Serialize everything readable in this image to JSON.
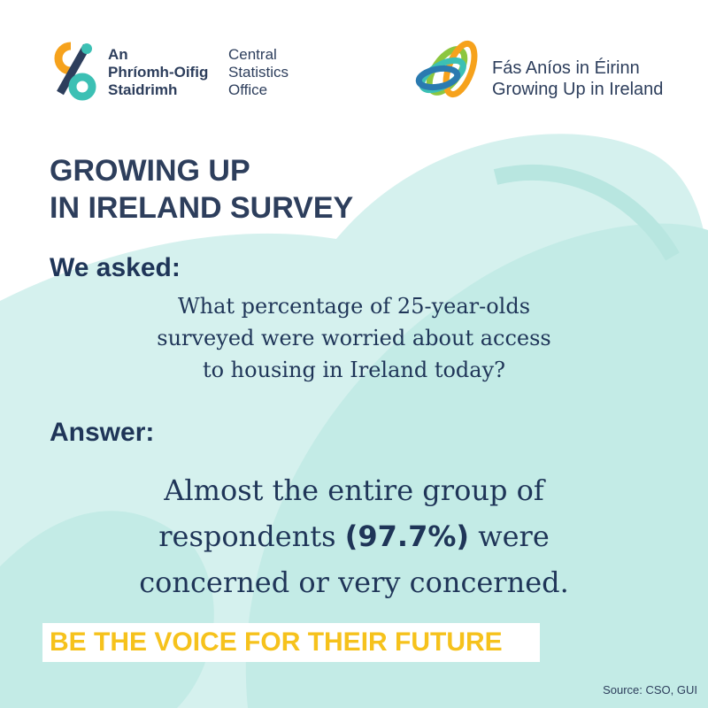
{
  "header": {
    "cso_logo": {
      "irish_lines": [
        "An",
        "Phríomh-Oifig",
        "Staidrimh"
      ],
      "english_lines": [
        "Central",
        "Statistics",
        "Office"
      ]
    },
    "gui_logo": {
      "irish": "Fás Aníos in Éirinn",
      "english": "Growing Up in Ireland"
    }
  },
  "title_lines": [
    "GROWING UP",
    "IN IRELAND SURVEY"
  ],
  "question": {
    "label": "We asked:",
    "lines": [
      "What percentage of 25-year-olds",
      "surveyed were worried about access",
      "to housing in Ireland today?"
    ]
  },
  "answer": {
    "label": "Answer:",
    "lines": [
      [
        "Almost the entire group of"
      ],
      [
        "respondents ",
        "(97.7%)",
        " were"
      ],
      [
        "concerned or very concerned."
      ]
    ]
  },
  "tagline": "BE THE VOICE FOR THEIR FUTURE",
  "source": "Source: CSO, GUI"
}
